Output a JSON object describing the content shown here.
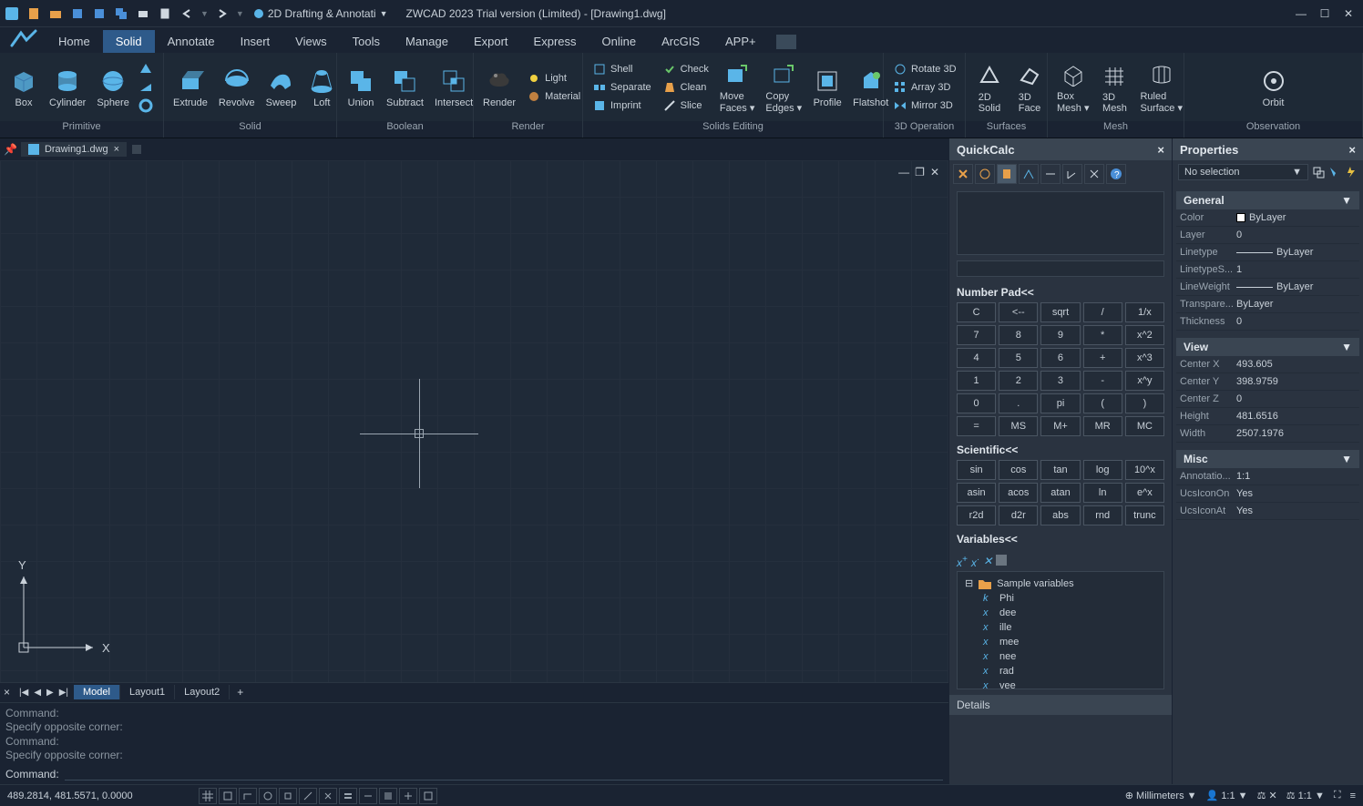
{
  "app": {
    "title": "ZWCAD 2023 Trial version (Limited) - [Drawing1.dwg]",
    "workspace": "2D Drafting & Annotati"
  },
  "ribbon": {
    "tabs": [
      "Home",
      "Solid",
      "Annotate",
      "Insert",
      "Views",
      "Tools",
      "Manage",
      "Export",
      "Express",
      "Online",
      "ArcGIS",
      "APP+"
    ],
    "activeTab": "Solid",
    "panels": {
      "primitive": {
        "label": "Primitive",
        "items": [
          "Box",
          "Cylinder",
          "Sphere"
        ]
      },
      "solid": {
        "label": "Solid",
        "items": [
          "Extrude",
          "Revolve",
          "Sweep",
          "Loft"
        ]
      },
      "boolean": {
        "label": "Boolean",
        "items": [
          "Union",
          "Subtract",
          "Intersect"
        ]
      },
      "render": {
        "label": "Render",
        "main": "Render",
        "small": [
          "Light",
          "Material"
        ]
      },
      "solidsEditing": {
        "label": "Solids Editing",
        "col1": [
          "Shell",
          "Separate",
          "Imprint"
        ],
        "col2": [
          "Check",
          "Clean",
          "Slice"
        ],
        "move": "Move Faces",
        "copy": "Copy Edges",
        "profile": "Profile",
        "flatshot": "Flatshot"
      },
      "threeDOp": {
        "label": "3D Operation",
        "items": [
          "Rotate 3D",
          "Array 3D",
          "Mirror 3D"
        ]
      },
      "surfaces": {
        "label": "Surfaces",
        "items": [
          "2D Solid",
          "3D Face"
        ]
      },
      "mesh": {
        "label": "Mesh",
        "items": [
          "Box Mesh",
          "3D Mesh",
          "Ruled Surface"
        ]
      },
      "observation": {
        "label": "Observation",
        "item": "Orbit"
      }
    }
  },
  "document": {
    "tab": "Drawing1.dwg"
  },
  "layouts": {
    "tabs": [
      "Model",
      "Layout1",
      "Layout2"
    ],
    "active": "Model"
  },
  "commandline": {
    "history": [
      "Command:",
      "Specify opposite corner:",
      "Command:",
      "Specify opposite corner:"
    ],
    "prompt": "Command:"
  },
  "quickcalc": {
    "title": "QuickCalc",
    "numberPad": {
      "title": "Number Pad<<",
      "rows": [
        [
          "C",
          "<--",
          "sqrt",
          "/",
          "1/x"
        ],
        [
          "7",
          "8",
          "9",
          "*",
          "x^2"
        ],
        [
          "4",
          "5",
          "6",
          "+",
          "x^3"
        ],
        [
          "1",
          "2",
          "3",
          "-",
          "x^y"
        ],
        [
          "0",
          ".",
          "pi",
          "(",
          ")"
        ],
        [
          "=",
          "MS",
          "M+",
          "MR",
          "MC"
        ]
      ]
    },
    "scientific": {
      "title": "Scientific<<",
      "rows": [
        [
          "sin",
          "cos",
          "tan",
          "log",
          "10^x"
        ],
        [
          "asin",
          "acos",
          "atan",
          "ln",
          "e^x"
        ],
        [
          "r2d",
          "d2r",
          "abs",
          "rnd",
          "trunc"
        ]
      ]
    },
    "variables": {
      "title": "Variables<<",
      "root": "Sample variables",
      "items": [
        "Phi",
        "dee",
        "ille",
        "mee",
        "nee",
        "rad",
        "vee"
      ]
    },
    "details": "Details"
  },
  "properties": {
    "title": "Properties",
    "selection": "No selection",
    "sections": {
      "general": {
        "label": "General",
        "rows": [
          {
            "k": "Color",
            "v": "ByLayer",
            "swatch": true
          },
          {
            "k": "Layer",
            "v": "0"
          },
          {
            "k": "Linetype",
            "v": "ByLayer",
            "line": true
          },
          {
            "k": "LinetypeS...",
            "v": "1"
          },
          {
            "k": "LineWeight",
            "v": "ByLayer",
            "line": true
          },
          {
            "k": "Transpare...",
            "v": "ByLayer"
          },
          {
            "k": "Thickness",
            "v": "0"
          }
        ]
      },
      "view": {
        "label": "View",
        "rows": [
          {
            "k": "Center X",
            "v": "493.605"
          },
          {
            "k": "Center Y",
            "v": "398.9759"
          },
          {
            "k": "Center Z",
            "v": "0"
          },
          {
            "k": "Height",
            "v": "481.6516"
          },
          {
            "k": "Width",
            "v": "2507.1976"
          }
        ]
      },
      "misc": {
        "label": "Misc",
        "rows": [
          {
            "k": "Annotatio...",
            "v": "1:1"
          },
          {
            "k": "UcsIconOn",
            "v": "Yes"
          },
          {
            "k": "UcsIconAt",
            "v": "Yes"
          }
        ]
      }
    }
  },
  "statusbar": {
    "coords": "489.2814, 481.5571, 0.0000",
    "units": "Millimeters",
    "scale": "1:1",
    "annoScale": "1:1"
  }
}
